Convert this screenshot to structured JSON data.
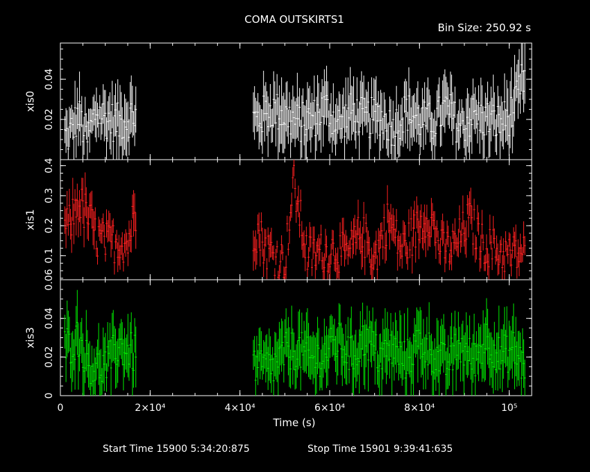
{
  "chart_data": {
    "type": "line",
    "title": "COMA OUTSKIRTS1",
    "bin_size_label": "Bin Size: 250.92 s",
    "xlabel": "Time (s)",
    "xlim": [
      0,
      105000
    ],
    "x_tick_labels": [
      "0",
      "2×10⁴",
      "4×10⁴",
      "6×10⁴",
      "8×10⁴",
      "10⁵"
    ],
    "x_tick_values": [
      0,
      20000,
      40000,
      60000,
      80000,
      100000
    ],
    "start_time": "Start Time 15900   5:34:20:875",
    "stop_time": "Stop Time 15901   9:39:41:635",
    "segments": [
      [
        1000,
        17000
      ],
      [
        43000,
        103500
      ]
    ],
    "panels": [
      {
        "name": "xis0",
        "color": "#ffffff",
        "ylim": [
          0,
          0.058
        ],
        "y_tick_labels": [
          "0.02",
          "0.04"
        ],
        "y_tick_values": [
          0.02,
          0.04
        ],
        "series": [
          {
            "x": 2000,
            "y": 0.012,
            "err": 0.008
          },
          {
            "x": 4000,
            "y": 0.022,
            "err": 0.012
          },
          {
            "x": 6000,
            "y": 0.01,
            "err": 0.008
          },
          {
            "x": 8000,
            "y": 0.024,
            "err": 0.01
          },
          {
            "x": 10500,
            "y": 0.02,
            "err": 0.01
          },
          {
            "x": 13000,
            "y": 0.018,
            "err": 0.012
          },
          {
            "x": 16000,
            "y": 0.022,
            "err": 0.01
          },
          {
            "x": 44000,
            "y": 0.02,
            "err": 0.01
          },
          {
            "x": 47000,
            "y": 0.025,
            "err": 0.012
          },
          {
            "x": 50000,
            "y": 0.022,
            "err": 0.012
          },
          {
            "x": 53000,
            "y": 0.018,
            "err": 0.012
          },
          {
            "x": 56000,
            "y": 0.02,
            "err": 0.01
          },
          {
            "x": 59000,
            "y": 0.026,
            "err": 0.012
          },
          {
            "x": 62000,
            "y": 0.018,
            "err": 0.01
          },
          {
            "x": 65000,
            "y": 0.024,
            "err": 0.012
          },
          {
            "x": 68000,
            "y": 0.02,
            "err": 0.01
          },
          {
            "x": 71000,
            "y": 0.022,
            "err": 0.012
          },
          {
            "x": 74000,
            "y": 0.016,
            "err": 0.01
          },
          {
            "x": 77000,
            "y": 0.024,
            "err": 0.012
          },
          {
            "x": 80000,
            "y": 0.02,
            "err": 0.01
          },
          {
            "x": 83000,
            "y": 0.018,
            "err": 0.01
          },
          {
            "x": 86000,
            "y": 0.026,
            "err": 0.012
          },
          {
            "x": 89000,
            "y": 0.016,
            "err": 0.01
          },
          {
            "x": 92000,
            "y": 0.022,
            "err": 0.012
          },
          {
            "x": 95000,
            "y": 0.02,
            "err": 0.01
          },
          {
            "x": 98000,
            "y": 0.018,
            "err": 0.012
          },
          {
            "x": 101000,
            "y": 0.024,
            "err": 0.012
          },
          {
            "x": 103000,
            "y": 0.04,
            "err": 0.012
          }
        ]
      },
      {
        "name": "xis1",
        "color": "#ff2020",
        "ylim": [
          0.02,
          0.42
        ],
        "y_tick_labels": [
          "0.1",
          "0.2",
          "0.3",
          "0.4"
        ],
        "y_tick_values": [
          0.1,
          0.2,
          0.3,
          0.4
        ],
        "series": [
          {
            "x": 2000,
            "y": 0.2,
            "err": 0.05
          },
          {
            "x": 4000,
            "y": 0.28,
            "err": 0.06
          },
          {
            "x": 6500,
            "y": 0.22,
            "err": 0.06
          },
          {
            "x": 8000,
            "y": 0.16,
            "err": 0.04
          },
          {
            "x": 10500,
            "y": 0.14,
            "err": 0.04
          },
          {
            "x": 13000,
            "y": 0.15,
            "err": 0.04
          },
          {
            "x": 15000,
            "y": 0.14,
            "err": 0.04
          },
          {
            "x": 16500,
            "y": 0.24,
            "err": 0.06
          },
          {
            "x": 44000,
            "y": 0.18,
            "err": 0.05
          },
          {
            "x": 46000,
            "y": 0.12,
            "err": 0.04
          },
          {
            "x": 50000,
            "y": 0.08,
            "err": 0.03
          },
          {
            "x": 52000,
            "y": 0.34,
            "err": 0.04
          },
          {
            "x": 55000,
            "y": 0.1,
            "err": 0.04
          },
          {
            "x": 58000,
            "y": 0.11,
            "err": 0.04
          },
          {
            "x": 61000,
            "y": 0.12,
            "err": 0.04
          },
          {
            "x": 64000,
            "y": 0.1,
            "err": 0.04
          },
          {
            "x": 67000,
            "y": 0.18,
            "err": 0.05
          },
          {
            "x": 70000,
            "y": 0.09,
            "err": 0.04
          },
          {
            "x": 73000,
            "y": 0.22,
            "err": 0.05
          },
          {
            "x": 76000,
            "y": 0.12,
            "err": 0.04
          },
          {
            "x": 79000,
            "y": 0.18,
            "err": 0.05
          },
          {
            "x": 82000,
            "y": 0.24,
            "err": 0.05
          },
          {
            "x": 85000,
            "y": 0.12,
            "err": 0.04
          },
          {
            "x": 88000,
            "y": 0.13,
            "err": 0.04
          },
          {
            "x": 91000,
            "y": 0.22,
            "err": 0.05
          },
          {
            "x": 94000,
            "y": 0.14,
            "err": 0.04
          },
          {
            "x": 97000,
            "y": 0.12,
            "err": 0.04
          },
          {
            "x": 100000,
            "y": 0.1,
            "err": 0.04
          },
          {
            "x": 103000,
            "y": 0.11,
            "err": 0.04
          }
        ]
      },
      {
        "name": "xis3",
        "color": "#00ee00",
        "ylim": [
          0,
          0.06
        ],
        "y_tick_labels": [
          "0",
          "0.02",
          "0.04",
          "0.06"
        ],
        "y_tick_values": [
          0,
          0.02,
          0.04,
          0.06
        ],
        "series": [
          {
            "x": 2000,
            "y": 0.026,
            "err": 0.012
          },
          {
            "x": 4000,
            "y": 0.03,
            "err": 0.014
          },
          {
            "x": 6000,
            "y": 0.018,
            "err": 0.012
          },
          {
            "x": 8000,
            "y": 0.014,
            "err": 0.012
          },
          {
            "x": 10500,
            "y": 0.016,
            "err": 0.01
          },
          {
            "x": 13000,
            "y": 0.026,
            "err": 0.012
          },
          {
            "x": 16000,
            "y": 0.022,
            "err": 0.012
          },
          {
            "x": 44000,
            "y": 0.016,
            "err": 0.012
          },
          {
            "x": 47000,
            "y": 0.014,
            "err": 0.01
          },
          {
            "x": 50000,
            "y": 0.022,
            "err": 0.012
          },
          {
            "x": 53000,
            "y": 0.024,
            "err": 0.012
          },
          {
            "x": 56000,
            "y": 0.018,
            "err": 0.012
          },
          {
            "x": 59000,
            "y": 0.022,
            "err": 0.012
          },
          {
            "x": 62000,
            "y": 0.028,
            "err": 0.012
          },
          {
            "x": 65000,
            "y": 0.02,
            "err": 0.012
          },
          {
            "x": 68000,
            "y": 0.03,
            "err": 0.014
          },
          {
            "x": 71000,
            "y": 0.02,
            "err": 0.012
          },
          {
            "x": 74000,
            "y": 0.024,
            "err": 0.012
          },
          {
            "x": 77000,
            "y": 0.018,
            "err": 0.012
          },
          {
            "x": 80000,
            "y": 0.028,
            "err": 0.014
          },
          {
            "x": 83000,
            "y": 0.022,
            "err": 0.012
          },
          {
            "x": 86000,
            "y": 0.016,
            "err": 0.012
          },
          {
            "x": 89000,
            "y": 0.026,
            "err": 0.012
          },
          {
            "x": 92000,
            "y": 0.018,
            "err": 0.012
          },
          {
            "x": 95000,
            "y": 0.03,
            "err": 0.014
          },
          {
            "x": 98000,
            "y": 0.02,
            "err": 0.012
          },
          {
            "x": 101000,
            "y": 0.024,
            "err": 0.012
          },
          {
            "x": 103000,
            "y": 0.016,
            "err": 0.012
          }
        ]
      }
    ]
  }
}
